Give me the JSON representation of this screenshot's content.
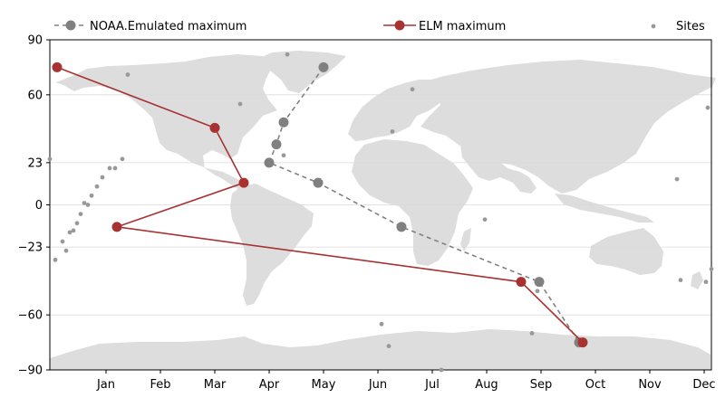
{
  "chart_data": {
    "type": "line",
    "title": "",
    "xlabel": "",
    "ylabel": "",
    "x_axis": {
      "unit": "day-of-year",
      "range": [
        -16,
        349
      ],
      "tick_values": [
        15,
        45,
        75,
        105,
        135,
        165,
        195,
        225,
        255,
        285,
        315,
        345
      ],
      "tick_labels": [
        "Jan",
        "Feb",
        "Mar",
        "Apr",
        "May",
        "Jun",
        "Jul",
        "Aug",
        "Sep",
        "Oct",
        "Nov",
        "Dec"
      ]
    },
    "y_axis": {
      "unit": "latitude-degrees",
      "range": [
        -90,
        90
      ],
      "tick_values": [
        90,
        60,
        23,
        0,
        -23,
        -60,
        -90
      ],
      "tick_labels": [
        "90",
        "60",
        "23",
        "0",
        "−23",
        "−60",
        "−90"
      ]
    },
    "grid": "horizontal",
    "background": "world-map-equirectangular",
    "legend": {
      "placement": "top",
      "entries": [
        {
          "label": "NOAA.Emulated maximum",
          "series": "noaa"
        },
        {
          "label": "ELM maximum",
          "series": "elm"
        },
        {
          "label": "Sites",
          "series": "sites"
        }
      ]
    },
    "series": [
      {
        "id": "noaa",
        "color": "#808080",
        "style": "dashed",
        "x": [
          135,
          113,
          109,
          105,
          132,
          178,
          254,
          276
        ],
        "y": [
          75,
          45,
          33,
          23,
          12,
          -12,
          -42,
          -75
        ]
      },
      {
        "id": "elm",
        "color": "#a83232",
        "style": "solid",
        "x": [
          -12,
          75,
          91,
          21,
          244,
          278
        ],
        "y": [
          75,
          42,
          12,
          -12,
          -42,
          -75
        ]
      },
      {
        "id": "sites",
        "color": "#999999",
        "style": "markers",
        "x": [
          -16,
          -13,
          -9,
          -7,
          -5,
          -3,
          -1,
          1,
          3,
          5,
          7,
          10,
          13,
          17,
          20,
          24,
          27,
          89,
          113,
          115,
          167,
          171,
          173,
          184,
          200,
          224,
          250,
          253,
          330,
          332,
          346,
          347,
          349
        ],
        "y": [
          25,
          -30,
          -20,
          -25,
          -15,
          -14,
          -10,
          -5,
          1,
          0,
          5,
          10,
          15,
          20,
          20,
          25,
          71,
          55,
          27,
          82,
          -65,
          -77,
          40,
          63,
          -90,
          -8,
          -70,
          -47,
          14,
          -41,
          -42,
          53,
          -35
        ]
      }
    ]
  }
}
